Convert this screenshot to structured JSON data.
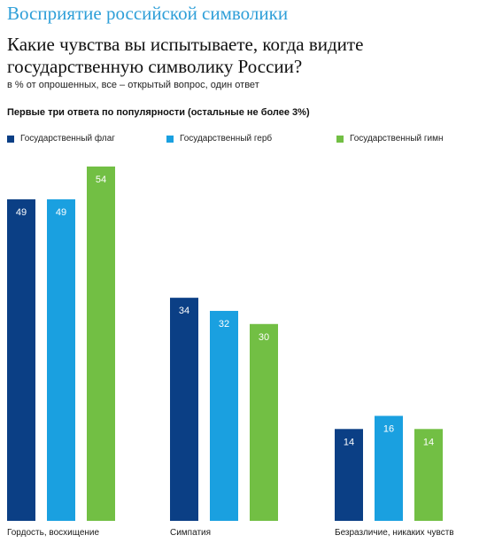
{
  "header": {
    "title": "Восприятие российской символики"
  },
  "question": "Какие чувства вы испытываете, когда видите государственную символику России?",
  "subtitle": "в % от опрошенных, все – открытый вопрос, один ответ",
  "note": "Первые  три  ответа по популярности (остальные не более 3%)",
  "colors": {
    "flag": "#0b3f85",
    "coat": "#1aa0e0",
    "anthem": "#72bf44",
    "header": "#2e9fd8"
  },
  "chart_data": {
    "type": "bar",
    "categories": [
      "Гордость, восхищение",
      "Симпатия",
      "Безразличие, никаких чувств"
    ],
    "series": [
      {
        "name": "Государственный флаг",
        "values": [
          49,
          34,
          14
        ]
      },
      {
        "name": "Государственный герб",
        "values": [
          49,
          32,
          16
        ]
      },
      {
        "name": "Государственный гимн",
        "values": [
          54,
          30,
          14
        ]
      }
    ],
    "ylim": [
      0,
      54
    ],
    "grid": false,
    "legend_position": "top",
    "data_labels": true
  }
}
